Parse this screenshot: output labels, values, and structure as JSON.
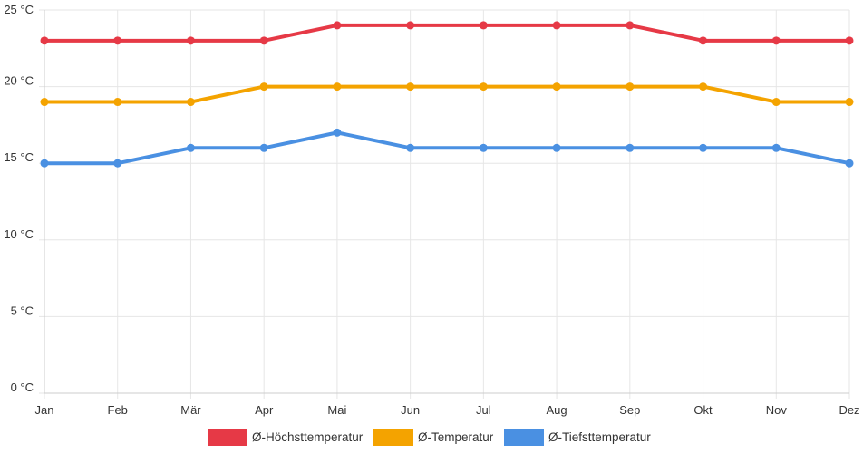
{
  "chart_data": {
    "type": "line",
    "categories": [
      "Jan",
      "Feb",
      "Mär",
      "Apr",
      "Mai",
      "Jun",
      "Jul",
      "Aug",
      "Sep",
      "Okt",
      "Nov",
      "Dez"
    ],
    "series": [
      {
        "name": "Ø-Höchsttemperatur",
        "color": "#e63946",
        "values": [
          23,
          23,
          23,
          23,
          24,
          24,
          24,
          24,
          24,
          23,
          23,
          23
        ]
      },
      {
        "name": "Ø-Temperatur",
        "color": "#f4a300",
        "values": [
          19,
          19,
          19,
          20,
          20,
          20,
          20,
          20,
          20,
          20,
          19,
          19
        ]
      },
      {
        "name": "Ø-Tiefsttemperatur",
        "color": "#4a90e2",
        "values": [
          15,
          15,
          16,
          16,
          17,
          16,
          16,
          16,
          16,
          16,
          16,
          15
        ]
      }
    ],
    "y_ticks": [
      "0 °C",
      "5 °C",
      "10 °C",
      "15 °C",
      "20 °C",
      "25 °C"
    ],
    "ylim": [
      0,
      25
    ],
    "title": "",
    "xlabel": "",
    "ylabel": "",
    "grid": true,
    "legend_position": "bottom-center"
  }
}
